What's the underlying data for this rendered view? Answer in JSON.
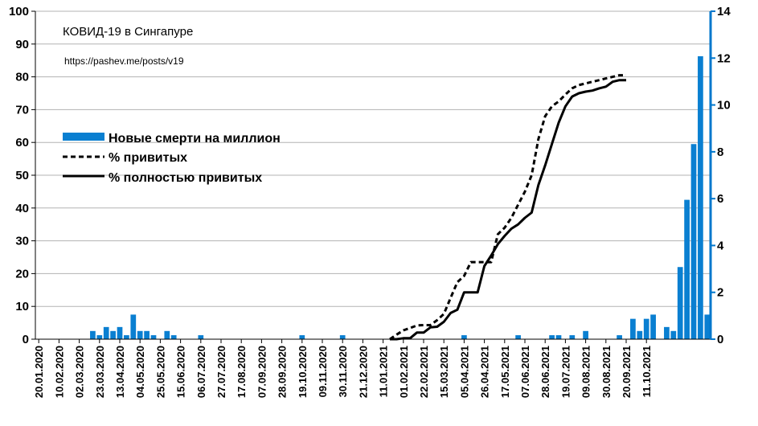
{
  "chart_data": {
    "type": "bar+line",
    "title": "КОВИД-19 в Сингапуре",
    "subtitle": "https://pashev.me/posts/v19",
    "left_axis": {
      "ylim": [
        0,
        100
      ],
      "ticks": [
        0,
        10,
        20,
        30,
        40,
        50,
        60,
        70,
        80,
        90,
        100
      ]
    },
    "right_axis": {
      "ylim": [
        0,
        14
      ],
      "ticks": [
        0,
        2,
        4,
        6,
        8,
        10,
        12,
        14
      ],
      "color": "#0077cc"
    },
    "x_labels": [
      "20.01.2020",
      "10.02.2020",
      "02.03.2020",
      "23.03.2020",
      "13.04.2020",
      "04.05.2020",
      "25.05.2020",
      "15.06.2020",
      "06.07.2020",
      "27.07.2020",
      "17.08.2020",
      "07.09.2020",
      "28.09.2020",
      "19.10.2020",
      "09.11.2020",
      "30.11.2020",
      "21.12.2020",
      "11.01.2021",
      "01.02.2021",
      "22.02.2021",
      "15.03.2021",
      "05.04.2021",
      "26.04.2021",
      "17.05.2021",
      "07.06.2021",
      "28.06.2021",
      "19.07.2021",
      "09.08.2021",
      "30.08.2021",
      "20.09.2021",
      "11.10.2021"
    ],
    "legend": {
      "position": "upper-left",
      "items": [
        {
          "label": "Новые смерти на миллион",
          "style": "bar",
          "color": "#0a7fd1"
        },
        {
          "label": "% привитых",
          "style": "dashed",
          "color": "#000000"
        },
        {
          "label": "% полностью привитых",
          "style": "solid",
          "color": "#000000"
        }
      ]
    },
    "series": [
      {
        "name": "Новые смерти на миллион",
        "type": "bar",
        "axis": "right",
        "color": "#0a7fd1",
        "values": [
          0,
          0,
          0,
          0,
          0,
          0,
          0,
          0,
          0.35,
          0.17,
          0.52,
          0.35,
          0.52,
          0.17,
          1.05,
          0.35,
          0.35,
          0.17,
          0,
          0.35,
          0.17,
          0,
          0,
          0,
          0.17,
          0,
          0,
          0,
          0,
          0,
          0,
          0,
          0,
          0,
          0,
          0,
          0,
          0,
          0,
          0.17,
          0,
          0,
          0,
          0,
          0,
          0.17,
          0,
          0,
          0,
          0,
          0,
          0,
          0,
          0,
          0,
          0,
          0,
          0,
          0,
          0,
          0,
          0,
          0,
          0.17,
          0,
          0,
          0,
          0,
          0,
          0,
          0,
          0.17,
          0,
          0,
          0,
          0,
          0.17,
          0.17,
          0,
          0.17,
          0,
          0.35,
          0,
          0,
          0,
          0,
          0.17,
          0,
          0.87,
          0.35,
          0.87,
          1.05,
          0,
          0.52,
          0.35,
          3.08,
          5.95,
          8.33,
          12.08,
          1.05
        ]
      },
      {
        "name": "% привитых",
        "type": "line",
        "style": "dashed",
        "axis": "left",
        "color": "#000000",
        "x_start_index": 52,
        "values": [
          0,
          1.4,
          2.7,
          3.4,
          4.2,
          4.3,
          4.3,
          5.8,
          7.7,
          12.6,
          17.4,
          19.3,
          23.5,
          23.5,
          23.5,
          23.5,
          32,
          34,
          37,
          41,
          45,
          50,
          61,
          68,
          71,
          72.5,
          74.6,
          76.5,
          77.5,
          78,
          78.5,
          79,
          79.5,
          80,
          80.5,
          80.5
        ]
      },
      {
        "name": "% полностью привитых",
        "type": "line",
        "style": "solid",
        "axis": "left",
        "color": "#000000",
        "x_start_index": 52,
        "values": [
          0,
          0,
          0.3,
          0.3,
          2,
          2,
          3.6,
          3.8,
          5.3,
          8,
          9,
          14.3,
          14.3,
          14.3,
          22.3,
          25.5,
          29,
          31.5,
          33.7,
          35,
          37,
          38.6,
          47,
          53,
          59.5,
          66,
          71,
          74,
          75,
          75.5,
          75.8,
          76.5,
          77,
          78.5,
          79,
          79
        ]
      }
    ]
  }
}
